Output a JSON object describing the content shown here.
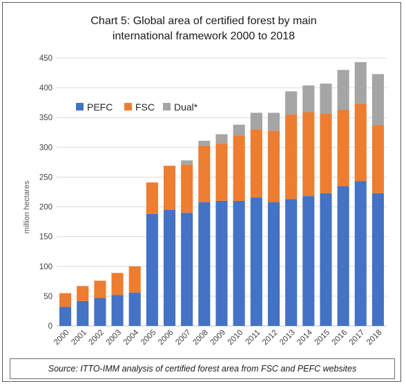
{
  "chart_data": {
    "type": "bar",
    "stacked": true,
    "title_line1": "Chart 5: Global area of certified forest by main",
    "title_line2": "international framework 2000 to 2018",
    "xlabel": "",
    "ylabel": "million hectares",
    "ylim": [
      0,
      450
    ],
    "yticks": [
      0,
      50,
      100,
      150,
      200,
      250,
      300,
      350,
      400,
      450
    ],
    "grid": true,
    "legend_position": "top-left",
    "categories": [
      "2000",
      "2001",
      "2002",
      "2003",
      "2004",
      "2005",
      "2006",
      "2007",
      "2008",
      "2009",
      "2010",
      "2011",
      "2012",
      "2013",
      "2014",
      "2015",
      "2016",
      "2017",
      "2018"
    ],
    "series": [
      {
        "name": "PEFC",
        "color": "#4472c4",
        "values": [
          32,
          42,
          47,
          52,
          56,
          188,
          195,
          190,
          208,
          210,
          210,
          216,
          208,
          213,
          218,
          223,
          235,
          243,
          223
        ]
      },
      {
        "name": "FSC",
        "color": "#ed7d31",
        "values": [
          23,
          25,
          29,
          37,
          44,
          53,
          74,
          81,
          95,
          97,
          110,
          114,
          120,
          142,
          141,
          134,
          128,
          130,
          114
        ]
      },
      {
        "name": "Dual*",
        "color": "#a5a5a5",
        "values": [
          0,
          0,
          0,
          0,
          0,
          0,
          0,
          7,
          8,
          15,
          18,
          28,
          30,
          39,
          45,
          50,
          67,
          70,
          86
        ]
      }
    ],
    "source": "Source: ITTO-IMM analysis of certified forest area from FSC and PEFC websites"
  }
}
